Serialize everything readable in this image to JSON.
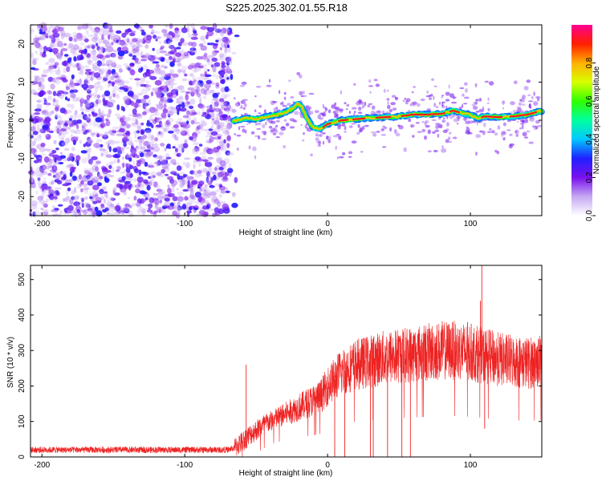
{
  "title": "S225.2025.302.01.55.R18",
  "chart_data": [
    {
      "type": "heatmap",
      "xlabel": "Height of straight line (km)",
      "ylabel": "Frequency (Hz)",
      "xlim": [
        -208,
        150
      ],
      "ylim": [
        -25,
        25
      ],
      "xticks": [
        -200,
        -100,
        0,
        100
      ],
      "yticks": [
        -20,
        -10,
        0,
        10,
        20
      ],
      "noise_region_x": [
        -208,
        -68
      ],
      "ridge": {
        "x": [
          -64,
          -58,
          -50,
          -42,
          -35,
          -30,
          -25,
          -21,
          -18,
          -15,
          -12,
          -9,
          -6,
          -3,
          0,
          5,
          10,
          20,
          30,
          40,
          50,
          60,
          70,
          80,
          88,
          95,
          100,
          105,
          110,
          120,
          130,
          140,
          150
        ],
        "freq": [
          0,
          0.5,
          0.3,
          1.0,
          1.5,
          2.0,
          3.0,
          4.3,
          3.5,
          1.0,
          -1.0,
          -2.0,
          -2.2,
          -1.8,
          -1.0,
          -0.5,
          0,
          0.3,
          0.6,
          0.8,
          1.0,
          1.5,
          1.5,
          1.7,
          2.5,
          1.8,
          1.5,
          0.5,
          1.0,
          0.8,
          1.0,
          1.5,
          2.5
        ]
      }
    },
    {
      "type": "line",
      "xlabel": "Height of straight line (km)",
      "ylabel": "SNR (10 * v/v)",
      "xlim": [
        -208,
        150
      ],
      "ylim": [
        0,
        540
      ],
      "xticks": [
        -200,
        -100,
        0,
        100
      ],
      "yticks": [
        0,
        100,
        200,
        300,
        400,
        500
      ],
      "series": [
        {
          "name": "SNR",
          "color": "#ee2222",
          "x": [
            -208,
            -180,
            -150,
            -120,
            -90,
            -70,
            -65,
            -55,
            -45,
            -35,
            -25,
            -15,
            -5,
            0,
            10,
            20,
            30,
            40,
            50,
            60,
            70,
            80,
            90,
            100,
            110,
            120,
            130,
            140,
            150
          ],
          "y": [
            20,
            20,
            20,
            20,
            20,
            20,
            25,
            60,
            90,
            110,
            130,
            150,
            170,
            200,
            240,
            260,
            270,
            280,
            285,
            290,
            295,
            300,
            300,
            295,
            285,
            275,
            270,
            265,
            270
          ]
        }
      ],
      "spikes": {
        "x": [
          -57,
          5,
          12,
          30,
          32,
          42,
          52,
          58,
          98,
          107,
          108,
          110
        ],
        "y": [
          260,
          0,
          0,
          0,
          0,
          0,
          0,
          0,
          380,
          440,
          540,
          80
        ]
      }
    }
  ],
  "colorbar": {
    "label": "Normalized spectral amplitude",
    "range": [
      0,
      1
    ],
    "ticks": [
      0.0,
      0.2,
      0.4,
      0.6,
      0.8
    ],
    "tick_labels": [
      "0.0",
      "0.2",
      "0.4",
      "0.6",
      "0.8"
    ],
    "colors": [
      "#ffffff",
      "#c6a8f2",
      "#7a10ee",
      "#2020ff",
      "#00c8ff",
      "#00ffa0",
      "#30ff00",
      "#d8ff00",
      "#ffb000",
      "#ff2000",
      "#ff0090"
    ]
  }
}
